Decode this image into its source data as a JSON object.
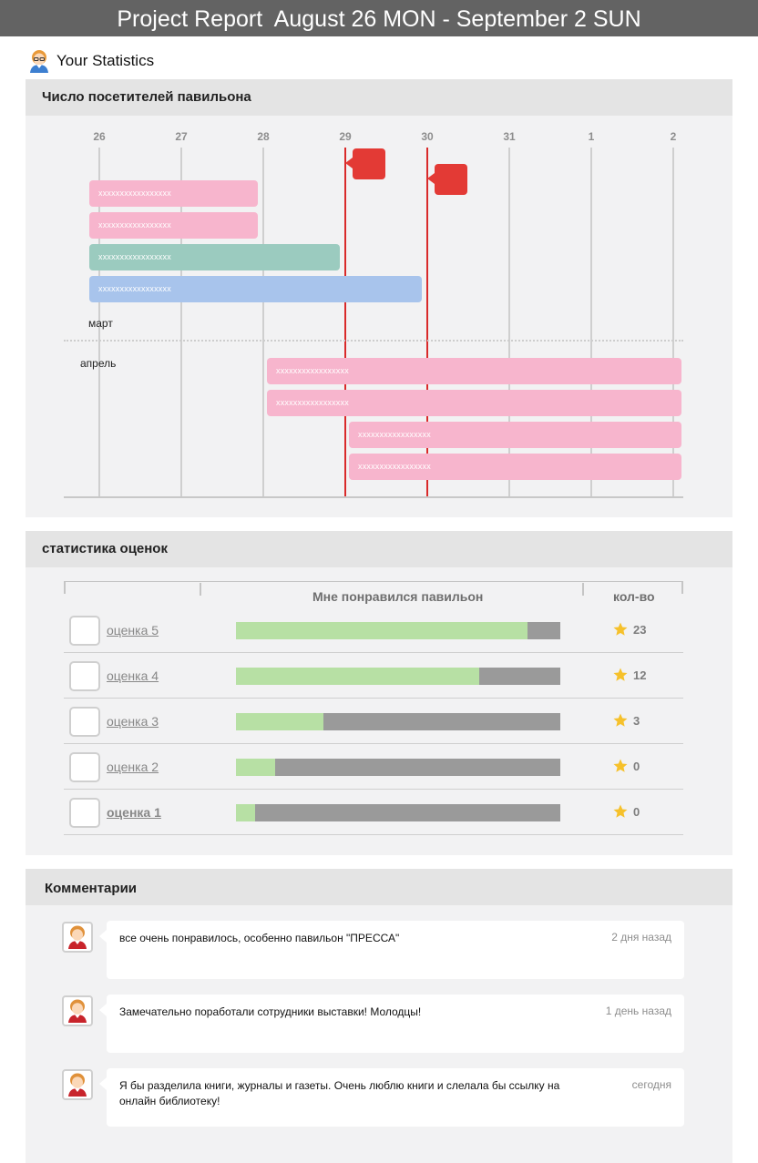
{
  "header": {
    "title": "Project Report  August 26 MON - September 2 SUN"
  },
  "user": {
    "label": "Your Statistics",
    "avatar_icon": "user-avatar-icon"
  },
  "visitors": {
    "title": "Число посетителей павильона",
    "days": [
      "26",
      "27",
      "28",
      "29",
      "30",
      "31",
      "1",
      "2"
    ],
    "marker_days": [
      "29",
      "30"
    ],
    "groups": [
      {
        "label": "март",
        "bars": [
          {
            "text": "xxxxxxxxxxxxxxxxx",
            "start": "26",
            "end": "28",
            "color": "#f7b5cd"
          },
          {
            "text": "xxxxxxxxxxxxxxxxx",
            "start": "26",
            "end": "28",
            "color": "#f7b5cd"
          },
          {
            "text": "xxxxxxxxxxxxxxxxx",
            "start": "26",
            "end": "29",
            "color": "#9bcbbf"
          },
          {
            "text": "xxxxxxxxxxxxxxxxx",
            "start": "26",
            "end": "30",
            "color": "#a8c4ec"
          }
        ]
      },
      {
        "label": "апрель",
        "bars": [
          {
            "text": "xxxxxxxxxxxxxxxxx",
            "start": "28",
            "end": "2",
            "color": "#f7b5cd"
          },
          {
            "text": "xxxxxxxxxxxxxxxxx",
            "start": "28",
            "end": "2",
            "color": "#f7b5cd"
          },
          {
            "text": "xxxxxxxxxxxxxxxxx",
            "start": "29",
            "end": "2",
            "color": "#f7b5cd"
          },
          {
            "text": "xxxxxxxxxxxxxxxxx",
            "start": "29",
            "end": "2",
            "color": "#f7b5cd"
          }
        ]
      }
    ]
  },
  "ratings": {
    "title": "статистика оценок",
    "col_liked": "Мне понравился павильон",
    "col_count": "кол-во",
    "rows": [
      {
        "label": "оценка 5",
        "percent": 90,
        "count": "23"
      },
      {
        "label": "оценка 4",
        "percent": 75,
        "count": "12"
      },
      {
        "label": "оценка 3",
        "percent": 27,
        "count": "3"
      },
      {
        "label": "оценка 2",
        "percent": 12,
        "count": "0"
      },
      {
        "label": "оценка 1",
        "percent": 6,
        "count": "0"
      }
    ],
    "star_icon": "star-icon",
    "star_color": "#f6c12b"
  },
  "comments": {
    "title": "Комментарии",
    "items": [
      {
        "text": "все очень понравилось, особенно павильон \"ПРЕССА\"",
        "time": "2 дня назад"
      },
      {
        "text": "Замечательно поработали сотрудники выставки! Молодцы!",
        "time": "1 день назад"
      },
      {
        "text": "Я бы разделила книги, журналы и газеты. Очень люблю книги и слелала бы ссылку на онлайн библиотеку!",
        "time": "сегодня"
      }
    ]
  },
  "colors": {
    "header_bg": "#636363",
    "marker": "#d92a2a",
    "flag": "#e33a35",
    "bar_fill": "#b7e0a4",
    "bar_track": "#9a9a9a"
  }
}
